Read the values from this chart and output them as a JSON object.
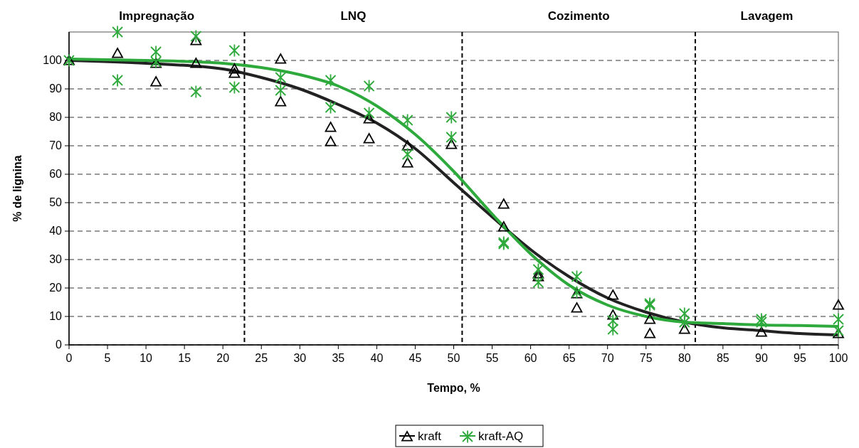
{
  "chart_data": {
    "type": "scatter",
    "xlabel": "Tempo, %",
    "ylabel": "% de lignina",
    "xlim": [
      0,
      100
    ],
    "xticks": [
      0,
      5,
      10,
      15,
      20,
      25,
      30,
      35,
      40,
      45,
      50,
      55,
      60,
      65,
      70,
      75,
      80,
      85,
      90,
      95,
      100
    ],
    "ylim": [
      0,
      110
    ],
    "yticks": [
      0,
      10,
      20,
      30,
      40,
      50,
      60,
      70,
      80,
      90,
      100
    ],
    "grid": "y",
    "legend": "bottom",
    "annotations": [
      "Impregnação",
      "LNQ",
      "Cozimento",
      "Lavagem"
    ],
    "ref_lines": [
      {
        "axis": "x",
        "value": 22.8,
        "color": "#000000",
        "line_style": "dashed"
      },
      {
        "axis": "x",
        "value": 51.1,
        "color": "#000000",
        "line_style": "dashed"
      },
      {
        "axis": "x",
        "value": 81.4,
        "color": "#000000",
        "line_style": "dashed"
      }
    ],
    "series": [
      {
        "name": "kraft",
        "marker": "triangle",
        "color": "#000000",
        "x": [
          0,
          6.3,
          11.3,
          11.3,
          16.5,
          16.5,
          21.5,
          21.5,
          27.5,
          27.5,
          34,
          34,
          39,
          39,
          44,
          44,
          49.7,
          56.5,
          56.5,
          61,
          61,
          66,
          66,
          70.7,
          70.7,
          75.5,
          75.5,
          80,
          90,
          100,
          100
        ],
        "values": [
          100,
          102.5,
          99,
          92.5,
          107,
          99,
          97,
          95.5,
          100.5,
          85.5,
          76.5,
          71.5,
          79.5,
          72.5,
          70,
          64,
          70.5,
          49.5,
          41.5,
          25,
          24,
          18,
          13,
          17.5,
          10.5,
          9,
          4,
          5.5,
          4.5,
          14,
          4
        ]
      },
      {
        "name": "kraft-AQ",
        "marker": "cross",
        "color": "#2eaa3c",
        "x": [
          0,
          6.3,
          6.3,
          11.3,
          11.3,
          16.5,
          16.5,
          21.5,
          21.5,
          27.5,
          27.5,
          34,
          34,
          39,
          39,
          44,
          44,
          49.7,
          49.7,
          56.5,
          56.5,
          61,
          61,
          66,
          66,
          70.7,
          70.7,
          75.5,
          75.5,
          80,
          80,
          90,
          90,
          100,
          100
        ],
        "values": [
          100,
          110,
          93,
          103,
          99.5,
          108.5,
          89,
          103.5,
          90.5,
          94,
          89.5,
          93,
          83.5,
          91,
          81.5,
          79,
          67,
          80,
          73,
          36,
          35.5,
          26.5,
          22,
          24,
          18.5,
          8.5,
          5.5,
          14.5,
          14,
          11,
          8,
          9,
          8,
          9,
          5
        ]
      },
      {
        "type": "line",
        "color": "#222222",
        "x": [
          0,
          10,
          20,
          25,
          30,
          35,
          40,
          45,
          50,
          55,
          60,
          65,
          70,
          75,
          80,
          85,
          90,
          95,
          100
        ],
        "values": [
          100,
          99,
          97,
          94,
          90,
          84.5,
          78,
          69,
          57,
          45,
          33.5,
          24,
          16.5,
          11.5,
          8,
          6,
          5,
          4,
          3.5
        ]
      },
      {
        "type": "line",
        "color": "#2eaa3c",
        "x": [
          0,
          10,
          20,
          25,
          30,
          35,
          40,
          45,
          50,
          55,
          60,
          65,
          70,
          75,
          80,
          85,
          90,
          95,
          100
        ],
        "values": [
          100.5,
          100,
          99,
          97.5,
          95,
          91,
          84,
          74,
          61,
          46,
          32,
          21,
          14,
          10,
          8,
          7.5,
          7,
          6.8,
          6.5
        ]
      }
    ]
  }
}
